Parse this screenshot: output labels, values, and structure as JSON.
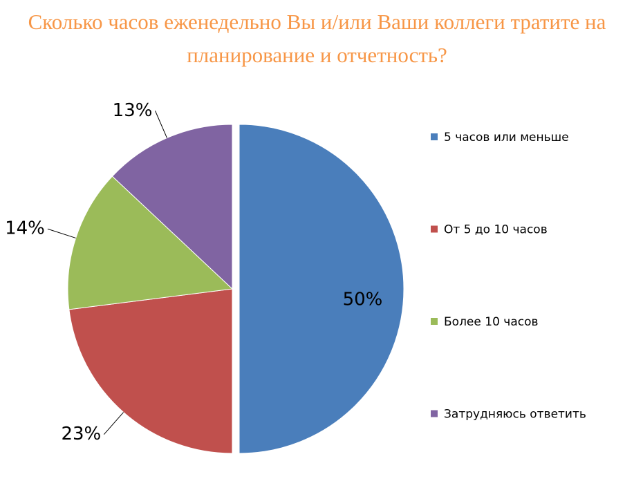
{
  "chart_data": {
    "type": "pie",
    "title": "Сколько часов еженедельно Вы и/или Ваши коллеги тратите на планирование и отчетность?",
    "categories": [
      "5 часов или меньше",
      "От 5 до 10 часов",
      "Более 10 часов",
      "Затрудняюсь ответить"
    ],
    "values": [
      50,
      23,
      14,
      13
    ],
    "value_labels": [
      "50%",
      "23%",
      "14%",
      "13%"
    ],
    "colors": [
      "#4a7ebb",
      "#c0504d",
      "#9bbb59",
      "#8064a2"
    ],
    "legend": "right"
  }
}
